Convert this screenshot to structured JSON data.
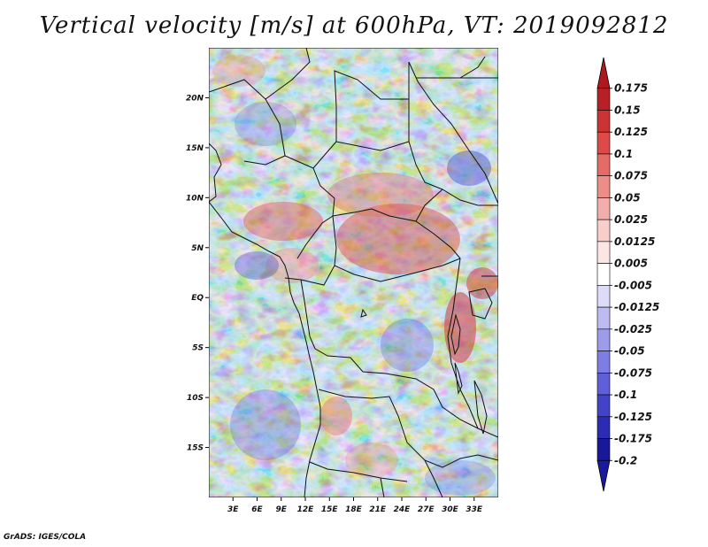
{
  "title": "Vertical velocity [m/s] at 600hPa, VT: 2019092812",
  "credit": "GrADS: IGES/COLA",
  "map": {
    "lon_range": [
      0,
      36
    ],
    "lat_range": [
      -20,
      25
    ],
    "lat_ticks": [
      {
        "value": 20,
        "label": "20N"
      },
      {
        "value": 15,
        "label": "15N"
      },
      {
        "value": 10,
        "label": "10N"
      },
      {
        "value": 5,
        "label": "5N"
      },
      {
        "value": 0,
        "label": "EQ"
      },
      {
        "value": -5,
        "label": "5S"
      },
      {
        "value": -10,
        "label": "10S"
      },
      {
        "value": -15,
        "label": "15S"
      }
    ],
    "lon_ticks": [
      {
        "value": 3,
        "label": "3E"
      },
      {
        "value": 6,
        "label": "6E"
      },
      {
        "value": 9,
        "label": "9E"
      },
      {
        "value": 12,
        "label": "12E"
      },
      {
        "value": 15,
        "label": "15E"
      },
      {
        "value": 18,
        "label": "18E"
      },
      {
        "value": 21,
        "label": "21E"
      },
      {
        "value": 24,
        "label": "24E"
      },
      {
        "value": 27,
        "label": "27E"
      },
      {
        "value": 30,
        "label": "30E"
      },
      {
        "value": 33,
        "label": "33E"
      }
    ]
  },
  "colorbar": {
    "levels": [
      {
        "label": "0.175",
        "color": "#a0161e"
      },
      {
        "label": "0.15",
        "color": "#b72026"
      },
      {
        "label": "0.125",
        "color": "#cc3333"
      },
      {
        "label": "0.1",
        "color": "#dd4a48"
      },
      {
        "label": "0.075",
        "color": "#e46b66"
      },
      {
        "label": "0.05",
        "color": "#ec8d88"
      },
      {
        "label": "0.025",
        "color": "#f3aeab"
      },
      {
        "label": "0.0125",
        "color": "#f8cdca"
      },
      {
        "label": "0.005",
        "color": "#fce6e4"
      },
      {
        "label": "-0.005",
        "color": "#ffffff"
      },
      {
        "label": "-0.0125",
        "color": "#dcdcf8"
      },
      {
        "label": "-0.025",
        "color": "#bcbcf2"
      },
      {
        "label": "-0.05",
        "color": "#9c9ceb"
      },
      {
        "label": "-0.075",
        "color": "#7d7de3"
      },
      {
        "label": "-0.1",
        "color": "#5f5fd8"
      },
      {
        "label": "-0.125",
        "color": "#4343c8"
      },
      {
        "label": "-0.175",
        "color": "#2b2bb4"
      },
      {
        "label": "-0.2",
        "color": "#181898"
      }
    ],
    "top_arrow_color": "#b01820",
    "bottom_arrow_color": "#1c1a9c"
  }
}
